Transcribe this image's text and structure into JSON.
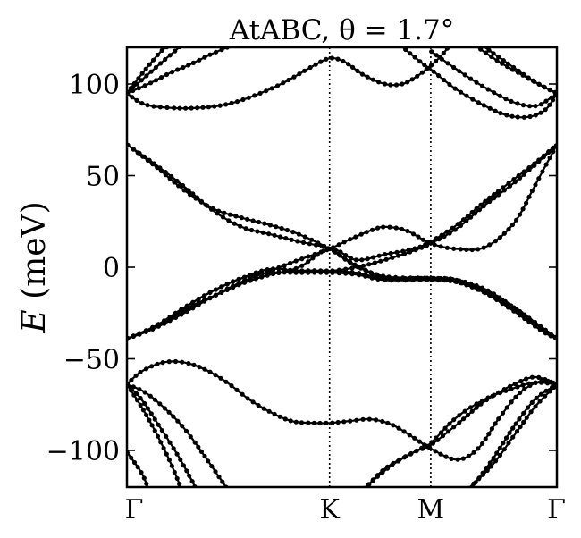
{
  "chart_data": {
    "type": "line",
    "title": "AtABC, θ = 1.7°",
    "xlabel": "",
    "ylabel": "E (meV)",
    "ylabel_parts": {
      "symbol": "E",
      "unit": " (meV)"
    },
    "ylim": [
      -120,
      120
    ],
    "xlim": [
      0,
      3
    ],
    "x_ticks": [
      {
        "x": 0,
        "label": "Γ"
      },
      {
        "x": 1.414,
        "label": "K"
      },
      {
        "x": 2.12,
        "label": "M"
      },
      {
        "x": 3,
        "label": "Γ"
      }
    ],
    "y_ticks": [
      {
        "y": 100,
        "label": "100"
      },
      {
        "y": 50,
        "label": "50"
      },
      {
        "y": 0,
        "label": "0"
      },
      {
        "y": -50,
        "label": "−50"
      },
      {
        "y": -100,
        "label": "−100"
      }
    ],
    "vlines": [
      0,
      1.414,
      2.12,
      3
    ],
    "grid": false,
    "marker": "dot",
    "color": "#000000",
    "series": [
      {
        "values": [
          [
            0,
            95
          ],
          [
            0.13,
            104
          ],
          [
            0.26,
            113
          ],
          [
            0.38,
            121
          ]
        ]
      },
      {
        "values": [
          [
            0,
            95
          ],
          [
            0.12,
            107
          ],
          [
            0.24,
            118
          ],
          [
            0.3,
            121
          ]
        ]
      },
      {
        "values": [
          [
            0,
            95
          ],
          [
            0.15,
            100
          ],
          [
            0.3,
            106
          ],
          [
            0.45,
            111
          ],
          [
            0.58,
            116
          ],
          [
            0.7,
            120
          ]
        ]
      },
      {
        "values": [
          [
            0,
            95
          ],
          [
            0.12,
            89
          ],
          [
            0.3,
            87
          ],
          [
            0.5,
            87
          ],
          [
            0.7,
            89
          ],
          [
            0.9,
            94
          ],
          [
            1.1,
            101
          ],
          [
            1.28,
            109
          ],
          [
            1.414,
            114
          ],
          [
            1.52,
            112
          ],
          [
            1.65,
            105
          ],
          [
            1.8,
            100
          ],
          [
            1.92,
            100
          ],
          [
            2.02,
            104
          ],
          [
            2.12,
            110
          ],
          [
            2.2,
            116
          ],
          [
            2.25,
            121
          ]
        ]
      },
      {
        "values": [
          [
            2.12,
            118
          ],
          [
            2.3,
            108
          ],
          [
            2.5,
            98
          ],
          [
            2.7,
            90
          ],
          [
            2.85,
            88
          ],
          [
            2.95,
            92
          ],
          [
            3,
            95
          ]
        ]
      },
      {
        "values": [
          [
            1.91,
            121
          ],
          [
            2.05,
            112
          ],
          [
            2.12,
            108
          ],
          [
            2.3,
            97
          ],
          [
            2.5,
            88
          ],
          [
            2.65,
            83
          ],
          [
            2.8,
            82
          ],
          [
            2.92,
            86
          ],
          [
            3,
            95
          ]
        ]
      },
      {
        "values": [
          [
            2.43,
            121
          ],
          [
            2.6,
            112
          ],
          [
            2.78,
            104
          ],
          [
            2.92,
            98
          ],
          [
            3,
            95
          ]
        ]
      },
      {
        "values": [
          [
            2.48,
            121
          ],
          [
            2.68,
            110
          ],
          [
            2.85,
            101
          ],
          [
            3,
            95
          ]
        ]
      },
      {
        "values": [
          [
            0,
            67
          ],
          [
            0.2,
            55
          ],
          [
            0.4,
            42
          ],
          [
            0.6,
            32
          ],
          [
            0.8,
            27
          ],
          [
            1.0,
            23
          ],
          [
            1.2,
            18
          ],
          [
            1.414,
            10
          ],
          [
            1.55,
            3
          ],
          [
            1.7,
            -3
          ],
          [
            1.85,
            -6
          ],
          [
            2.12,
            -6
          ],
          [
            2.3,
            -7
          ],
          [
            2.5,
            -12
          ],
          [
            2.7,
            -22
          ],
          [
            2.9,
            -34
          ],
          [
            3,
            -39
          ]
        ]
      },
      {
        "values": [
          [
            0,
            67
          ],
          [
            0.2,
            56
          ],
          [
            0.4,
            44
          ],
          [
            0.6,
            31
          ],
          [
            0.8,
            22
          ],
          [
            1.0,
            18
          ],
          [
            1.2,
            14
          ],
          [
            1.414,
            10
          ],
          [
            1.6,
            1
          ],
          [
            1.8,
            -5
          ],
          [
            2.12,
            -6
          ],
          [
            2.3,
            -8
          ],
          [
            2.5,
            -14
          ],
          [
            2.7,
            -23
          ],
          [
            2.9,
            -34
          ],
          [
            3,
            -39
          ]
        ]
      },
      {
        "values": [
          [
            0,
            -39
          ],
          [
            0.2,
            -33
          ],
          [
            0.4,
            -23
          ],
          [
            0.6,
            -16
          ],
          [
            0.8,
            -9
          ],
          [
            1.0,
            -4
          ],
          [
            1.2,
            -2
          ],
          [
            1.414,
            -2
          ],
          [
            1.6,
            -3
          ],
          [
            1.8,
            -6
          ],
          [
            2.12,
            -6
          ],
          [
            2.3,
            -7
          ],
          [
            2.5,
            -14
          ],
          [
            2.7,
            -24
          ],
          [
            2.9,
            -35
          ],
          [
            3,
            -39
          ]
        ]
      },
      {
        "values": [
          [
            0,
            -39
          ],
          [
            0.2,
            -32
          ],
          [
            0.4,
            -22
          ],
          [
            0.6,
            -13
          ],
          [
            0.8,
            -6
          ],
          [
            1.0,
            -3
          ],
          [
            1.2,
            -3
          ],
          [
            1.414,
            -3
          ],
          [
            1.6,
            -4
          ],
          [
            1.8,
            -7
          ],
          [
            2.12,
            -7
          ],
          [
            2.3,
            -8
          ],
          [
            2.5,
            -13
          ],
          [
            2.7,
            -22
          ],
          [
            2.9,
            -33
          ],
          [
            3,
            -39
          ]
        ]
      },
      {
        "values": [
          [
            0,
            -39
          ],
          [
            0.2,
            -33
          ],
          [
            0.4,
            -25
          ],
          [
            0.6,
            -16
          ],
          [
            0.8,
            -8
          ],
          [
            1.0,
            -2
          ],
          [
            1.2,
            4
          ],
          [
            1.414,
            10
          ],
          [
            1.55,
            15
          ],
          [
            1.7,
            20
          ],
          [
            1.8,
            22
          ],
          [
            1.95,
            20
          ],
          [
            2.12,
            13
          ],
          [
            2.3,
            10
          ],
          [
            2.5,
            11
          ],
          [
            2.7,
            24
          ],
          [
            2.85,
            45
          ],
          [
            3,
            67
          ]
        ]
      },
      {
        "values": [
          [
            0,
            -39
          ],
          [
            0.2,
            -32
          ],
          [
            0.4,
            -22
          ],
          [
            0.6,
            -13
          ],
          [
            0.8,
            -6
          ],
          [
            1.0,
            -1
          ],
          [
            1.2,
            -2
          ],
          [
            1.414,
            -2
          ],
          [
            1.6,
            0
          ],
          [
            1.8,
            4
          ],
          [
            2.0,
            9
          ],
          [
            2.12,
            13
          ],
          [
            2.3,
            21
          ],
          [
            2.5,
            34
          ],
          [
            2.7,
            46
          ],
          [
            2.85,
            56
          ],
          [
            3,
            67
          ]
        ]
      },
      {
        "values": [
          [
            0,
            -39
          ],
          [
            0.2,
            -33
          ],
          [
            0.4,
            -24
          ],
          [
            0.6,
            -16
          ],
          [
            0.8,
            -9
          ],
          [
            1.0,
            -4
          ],
          [
            1.2,
            0
          ],
          [
            1.414,
            10
          ],
          [
            1.6,
            4
          ],
          [
            1.8,
            7
          ],
          [
            2.0,
            10
          ],
          [
            2.12,
            14
          ],
          [
            2.3,
            23
          ],
          [
            2.5,
            36
          ],
          [
            2.7,
            48
          ],
          [
            2.85,
            57
          ],
          [
            3,
            67
          ]
        ]
      },
      {
        "values": [
          [
            0,
            -64
          ],
          [
            0.1,
            -57
          ],
          [
            0.25,
            -52
          ],
          [
            0.4,
            -52
          ],
          [
            0.55,
            -56
          ],
          [
            0.7,
            -63
          ],
          [
            0.85,
            -72
          ],
          [
            1.0,
            -79
          ],
          [
            1.15,
            -84
          ],
          [
            1.3,
            -85
          ],
          [
            1.414,
            -85
          ],
          [
            1.55,
            -84
          ],
          [
            1.7,
            -83
          ],
          [
            1.85,
            -86
          ],
          [
            2.0,
            -93
          ],
          [
            2.12,
            -99
          ],
          [
            2.3,
            -105
          ],
          [
            2.45,
            -99
          ],
          [
            2.6,
            -82
          ],
          [
            2.75,
            -68
          ],
          [
            2.9,
            -62
          ],
          [
            3,
            -64
          ]
        ]
      },
      {
        "values": [
          [
            0,
            -64
          ],
          [
            0.12,
            -68
          ],
          [
            0.25,
            -76
          ],
          [
            0.4,
            -88
          ],
          [
            0.55,
            -104
          ],
          [
            0.7,
            -121
          ]
        ]
      },
      {
        "values": [
          [
            0,
            -64
          ],
          [
            0.1,
            -72
          ],
          [
            0.22,
            -86
          ],
          [
            0.35,
            -102
          ],
          [
            0.45,
            -116
          ],
          [
            0.48,
            -121
          ]
        ]
      },
      {
        "values": [
          [
            0,
            -64
          ],
          [
            0.1,
            -76
          ],
          [
            0.2,
            -90
          ],
          [
            0.3,
            -106
          ],
          [
            0.38,
            -121
          ]
        ]
      },
      {
        "values": [
          [
            0,
            -101
          ],
          [
            0.1,
            -112
          ],
          [
            0.15,
            -121
          ]
        ]
      },
      {
        "values": [
          [
            1.66,
            -121
          ],
          [
            1.8,
            -110
          ],
          [
            2.0,
            -101
          ],
          [
            2.12,
            -97
          ],
          [
            2.3,
            -86
          ],
          [
            2.5,
            -73
          ],
          [
            2.7,
            -64
          ],
          [
            2.85,
            -60
          ],
          [
            3,
            -64
          ]
        ]
      },
      {
        "values": [
          [
            1.65,
            -121
          ],
          [
            1.85,
            -108
          ],
          [
            2.05,
            -99
          ],
          [
            2.12,
            -96
          ],
          [
            2.3,
            -82
          ],
          [
            2.5,
            -72
          ],
          [
            2.7,
            -66
          ],
          [
            2.85,
            -63
          ],
          [
            3,
            -64
          ]
        ]
      },
      {
        "values": [
          [
            2.4,
            -121
          ],
          [
            2.55,
            -105
          ],
          [
            2.7,
            -87
          ],
          [
            2.85,
            -72
          ],
          [
            3,
            -64
          ]
        ]
      },
      {
        "values": [
          [
            2.38,
            -121
          ],
          [
            2.55,
            -108
          ],
          [
            2.7,
            -92
          ],
          [
            2.85,
            -76
          ],
          [
            3,
            -64
          ]
        ]
      }
    ]
  }
}
